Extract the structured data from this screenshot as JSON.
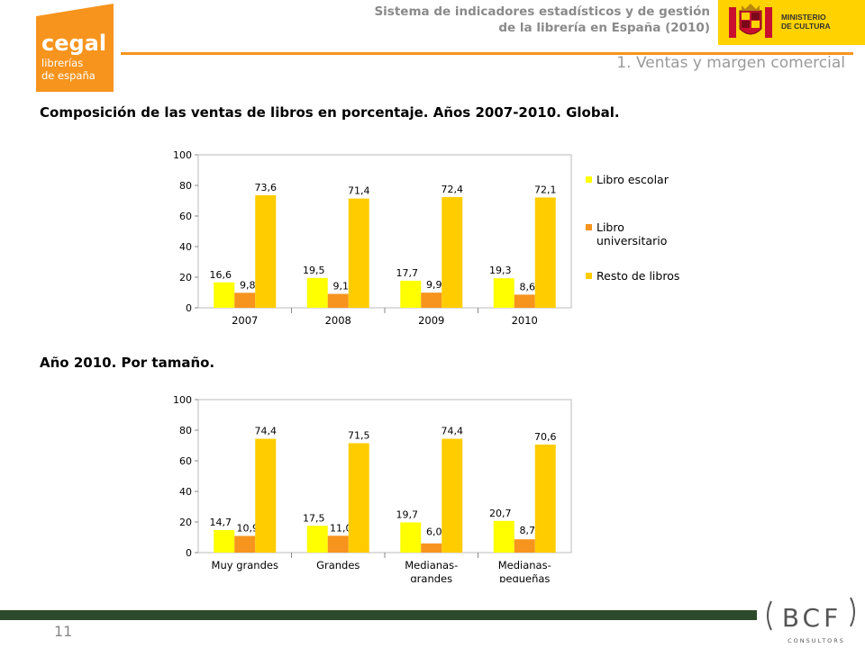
{
  "header": {
    "logo_text": [
      "cegal",
      "librerías",
      "de españa"
    ],
    "title_line1": "Sistema de indicadores estadísticos y de gestión",
    "title_line2": "de la librería en España (2010)",
    "ministry_line1": "MINISTERIO",
    "ministry_line2": "DE CULTURA",
    "section": "1. Ventas y margen comercial"
  },
  "footer": {
    "page_number": "11",
    "brand": "BCF",
    "brand_sub": "CONSULTORS"
  },
  "colors": {
    "accent": "#f7941d",
    "series": [
      "#ffff00",
      "#f7941d",
      "#ffcc00"
    ],
    "footer_bar": "#2e4a2c"
  },
  "legend": [
    "Libro escolar",
    "Libro universitario",
    "Resto de libros"
  ],
  "chart_data": [
    {
      "type": "bar",
      "title": "Composición de las ventas de libros en porcentaje. Años 2007-2010. Global.",
      "categories": [
        "2007",
        "2008",
        "2009",
        "2010"
      ],
      "ylim": [
        0,
        100
      ],
      "yticks": [
        "0",
        "20",
        "40",
        "60",
        "80",
        "100"
      ],
      "series": [
        {
          "name": "Libro escolar",
          "values": [
            16.6,
            19.5,
            17.7,
            19.3
          ],
          "labels": [
            "16,6",
            "19,5",
            "17,7",
            "19,3"
          ]
        },
        {
          "name": "Libro universitario",
          "values": [
            9.8,
            9.1,
            9.9,
            8.6
          ],
          "labels": [
            "9,8",
            "9,1",
            "9,9",
            "8,6"
          ]
        },
        {
          "name": "Resto de libros",
          "values": [
            73.6,
            71.4,
            72.4,
            72.1
          ],
          "labels": [
            "73,6",
            "71,4",
            "72,4",
            "72,1"
          ]
        }
      ]
    },
    {
      "type": "bar",
      "title": "Año 2010. Por tamaño.",
      "categories": [
        "Muy grandes",
        "Grandes",
        "Medianas- grandes",
        "Medianas- pequeñas"
      ],
      "category_lines": [
        [
          "Muy grandes"
        ],
        [
          "Grandes"
        ],
        [
          "Medianas-",
          "grandes"
        ],
        [
          "Medianas-",
          "pequeñas"
        ]
      ],
      "ylim": [
        0,
        100
      ],
      "yticks": [
        "0",
        "20",
        "40",
        "60",
        "80",
        "100"
      ],
      "series": [
        {
          "name": "Libro escolar",
          "values": [
            14.7,
            17.5,
            19.7,
            20.7
          ],
          "labels": [
            "14,7",
            "17,5",
            "19,7",
            "20,7"
          ]
        },
        {
          "name": "Libro universitario",
          "values": [
            10.9,
            11.0,
            6.0,
            8.7
          ],
          "labels": [
            "10,9",
            "11,0",
            "6,0",
            "8,7"
          ]
        },
        {
          "name": "Resto de libros",
          "values": [
            74.4,
            71.5,
            74.4,
            70.6
          ],
          "labels": [
            "74,4",
            "71,5",
            "74,4",
            "70,6"
          ]
        }
      ]
    }
  ]
}
